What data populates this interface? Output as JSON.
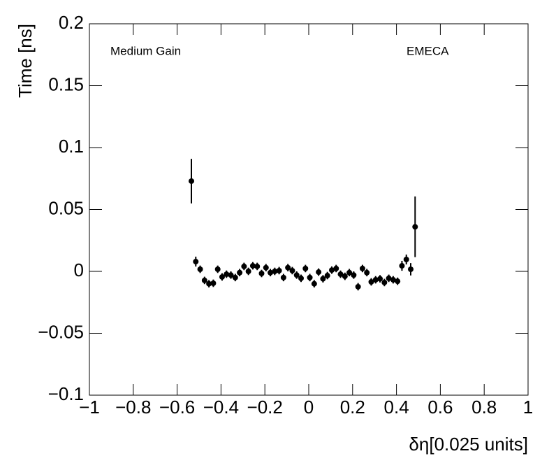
{
  "chart_data": {
    "type": "scatter",
    "xlabel": "δη[0.025 units]",
    "ylabel": "Time [ns]",
    "annotations": [
      "Medium Gain",
      "EMECA"
    ],
    "color": "#000000",
    "x": [
      -0.535,
      -0.515,
      -0.495,
      -0.475,
      -0.455,
      -0.435,
      -0.415,
      -0.395,
      -0.375,
      -0.355,
      -0.335,
      -0.315,
      -0.295,
      -0.275,
      -0.255,
      -0.235,
      -0.215,
      -0.195,
      -0.175,
      -0.155,
      -0.135,
      -0.115,
      -0.095,
      -0.075,
      -0.055,
      -0.035,
      -0.015,
      0.005,
      0.025,
      0.045,
      0.065,
      0.085,
      0.105,
      0.125,
      0.145,
      0.165,
      0.185,
      0.205,
      0.225,
      0.245,
      0.265,
      0.285,
      0.305,
      0.325,
      0.345,
      0.365,
      0.385,
      0.405,
      0.425,
      0.445,
      0.465,
      0.485
    ],
    "values": [
      0.0729,
      0.0079,
      0.0017,
      -0.0073,
      -0.01,
      -0.0096,
      0.0017,
      -0.0045,
      -0.0023,
      -0.003,
      -0.005,
      -0.001,
      0.004,
      0,
      0.0045,
      0.004,
      -0.0017,
      0.003,
      -0.001,
      0,
      0.0006,
      -0.005,
      0.003,
      0.0006,
      -0.003,
      -0.0056,
      0.0023,
      -0.005,
      -0.01,
      -0.0006,
      -0.006,
      -0.0034,
      0.001,
      0.0023,
      -0.0023,
      -0.004,
      -0.001,
      -0.003,
      -0.0124,
      0.0023,
      -0.001,
      -0.0085,
      -0.0068,
      -0.006,
      -0.009,
      -0.0056,
      -0.0068,
      -0.008,
      0.0045,
      0.0096,
      0.0017,
      0.036
    ],
    "errors": [
      0.018,
      0.004,
      0.003,
      0.003,
      0.003,
      0.003,
      0.003,
      0.003,
      0.003,
      0.003,
      0.003,
      0.003,
      0.003,
      0.003,
      0.003,
      0.003,
      0.003,
      0.003,
      0.003,
      0.003,
      0.003,
      0.003,
      0.003,
      0.003,
      0.003,
      0.003,
      0.003,
      0.003,
      0.003,
      0.003,
      0.003,
      0.003,
      0.003,
      0.003,
      0.003,
      0.003,
      0.003,
      0.003,
      0.003,
      0.003,
      0.003,
      0.003,
      0.003,
      0.003,
      0.003,
      0.003,
      0.003,
      0.003,
      0.004,
      0.004,
      0.005,
      0.0245
    ],
    "xlim": [
      -1,
      1
    ],
    "ylim": [
      -0.1,
      0.2
    ],
    "xticks": [
      {
        "value": -1,
        "label": "−1"
      },
      {
        "value": -0.8,
        "label": "−0.8"
      },
      {
        "value": -0.6,
        "label": "−0.6"
      },
      {
        "value": -0.4,
        "label": "−0.4"
      },
      {
        "value": -0.2,
        "label": "−0.2"
      },
      0,
      0.2,
      0.4,
      0.6,
      0.8,
      1
    ],
    "yticks": [
      {
        "value": -0.1,
        "label": "−0.1"
      },
      {
        "value": -0.05,
        "label": "−0.05"
      },
      0,
      0.05,
      0.1,
      0.15,
      0.2
    ]
  }
}
